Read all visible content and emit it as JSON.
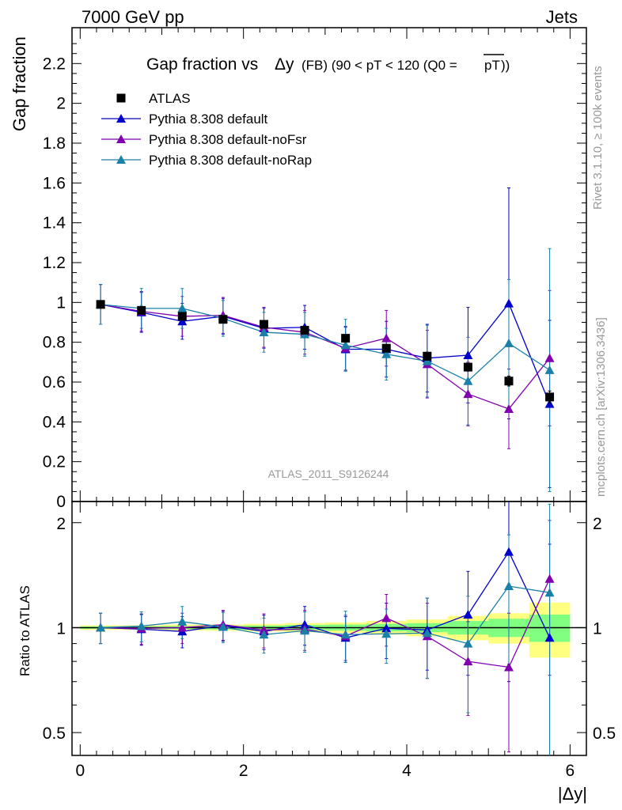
{
  "header": {
    "left": "7000 GeV pp",
    "right": "Jets"
  },
  "title": {
    "main": "Gap fraction vs",
    "delta_y": "Δy",
    "cut": "(FB) (90 < pT < 120 (Q0 =",
    "pt_bar": "pT",
    "close": "))"
  },
  "analysis_label": "ATLAS_2011_S9126244",
  "side_labels": {
    "rivet": "Rivet 3.1.10, ≥ 100k events",
    "mcplots": "mcplots.cern.ch [arXiv:1306.3436]"
  },
  "colors": {
    "atlas": "#000000",
    "default": "#0000cc",
    "noFsr": "#8000b0",
    "noRap": "#1a80a8",
    "band_outer": "#ffff80",
    "band_inner": "#80ff80"
  },
  "chart_data": [
    {
      "type": "scatter",
      "ylabel": "Gap fraction",
      "xlim": [
        -0.1,
        6.2
      ],
      "ylim": [
        0,
        2.38
      ],
      "y_tick_labels": [
        "0",
        "0.2",
        "0.4",
        "0.6",
        "0.8",
        "1",
        "1.2",
        "1.4",
        "1.6",
        "1.8",
        "2",
        "2.2"
      ],
      "legend_position": "top-left",
      "x": [
        0.25,
        0.75,
        1.25,
        1.75,
        2.25,
        2.75,
        3.25,
        3.75,
        4.25,
        4.75,
        5.25,
        5.75
      ],
      "series": [
        {
          "name": "ATLAS",
          "key": "atlas",
          "marker": "square",
          "values": [
            0.99,
            0.96,
            0.93,
            0.915,
            0.89,
            0.86,
            0.82,
            0.77,
            0.73,
            0.675,
            0.605,
            0.525
          ],
          "err": [
            0.01,
            0.01,
            0.01,
            0.01,
            0.01,
            0.01,
            0.015,
            0.015,
            0.02,
            0.02,
            0.025,
            0.03
          ]
        },
        {
          "name": "Pythia 8.308 default",
          "key": "default",
          "marker": "triangle",
          "values": [
            0.99,
            0.95,
            0.905,
            0.93,
            0.87,
            0.875,
            0.765,
            0.765,
            0.72,
            0.735,
            0.995,
            0.49
          ],
          "err": [
            0.1,
            0.1,
            0.09,
            0.09,
            0.1,
            0.11,
            0.11,
            0.14,
            0.17,
            0.24,
            0.58,
            0.42
          ]
        },
        {
          "name": "Pythia 8.308 default-noFsr",
          "key": "noFsr",
          "marker": "triangle",
          "values": [
            0.99,
            0.955,
            0.93,
            0.935,
            0.875,
            0.85,
            0.77,
            0.82,
            0.69,
            0.54,
            0.465,
            0.72
          ],
          "err": [
            0.1,
            0.1,
            0.1,
            0.09,
            0.1,
            0.11,
            0.11,
            0.14,
            0.17,
            0.16,
            0.2,
            0.34
          ]
        },
        {
          "name": "Pythia 8.308 default-noRap",
          "key": "noRap",
          "marker": "triangle",
          "values": [
            0.99,
            0.97,
            0.97,
            0.92,
            0.85,
            0.84,
            0.785,
            0.74,
            0.705,
            0.605,
            0.795,
            0.66
          ],
          "err": [
            0.1,
            0.1,
            0.1,
            0.09,
            0.1,
            0.11,
            0.13,
            0.13,
            0.18,
            0.22,
            0.32,
            0.61
          ]
        }
      ]
    },
    {
      "type": "scatter",
      "ylabel": "Ratio to ATLAS",
      "xlabel": "|Δy|",
      "xlim": [
        -0.1,
        6.2
      ],
      "ylim": [
        0.43,
        2.3
      ],
      "yscale": "log",
      "x_tick_labels": [
        "0",
        "2",
        "4",
        "6"
      ],
      "y_tick_labels": [
        "0.5",
        "1",
        "2"
      ],
      "x": [
        0.25,
        0.75,
        1.25,
        1.75,
        2.25,
        2.75,
        3.25,
        3.75,
        4.25,
        4.75,
        5.25,
        5.75
      ],
      "reference_band": {
        "x_edges": [
          0,
          0.5,
          1,
          1.5,
          2,
          2.5,
          3,
          3.5,
          4,
          4.5,
          5,
          5.5,
          6
        ],
        "outer": [
          0.015,
          0.015,
          0.02,
          0.02,
          0.025,
          0.03,
          0.035,
          0.045,
          0.055,
          0.08,
          0.1,
          0.18
        ],
        "inner": [
          0.008,
          0.008,
          0.01,
          0.012,
          0.014,
          0.018,
          0.02,
          0.025,
          0.03,
          0.045,
          0.06,
          0.09
        ]
      },
      "series": [
        {
          "name": "Pythia 8.308 default",
          "key": "default",
          "values": [
            1.0,
            0.99,
            0.975,
            1.015,
            0.975,
            1.02,
            0.935,
            0.995,
            0.985,
            1.09,
            1.65,
            0.935
          ],
          "err": [
            0.1,
            0.1,
            0.1,
            0.1,
            0.11,
            0.13,
            0.14,
            0.18,
            0.23,
            0.36,
            0.95,
            0.8
          ]
        },
        {
          "name": "Pythia 8.308 default-noFsr",
          "key": "noFsr",
          "values": [
            1.0,
            0.995,
            1.0,
            1.02,
            0.985,
            0.99,
            0.945,
            1.065,
            0.945,
            0.8,
            0.77,
            1.38
          ],
          "err": [
            0.1,
            0.1,
            0.1,
            0.1,
            0.11,
            0.13,
            0.14,
            0.18,
            0.23,
            0.24,
            0.33,
            0.65
          ]
        },
        {
          "name": "Pythia 8.308 default-noRap",
          "key": "noRap",
          "values": [
            1.0,
            1.01,
            1.04,
            1.005,
            0.955,
            0.98,
            0.955,
            0.96,
            0.965,
            0.9,
            1.315,
            1.26
          ],
          "err": [
            0.1,
            0.1,
            0.11,
            0.1,
            0.11,
            0.13,
            0.16,
            0.17,
            0.25,
            0.33,
            0.53,
            1.0
          ]
        }
      ]
    }
  ]
}
